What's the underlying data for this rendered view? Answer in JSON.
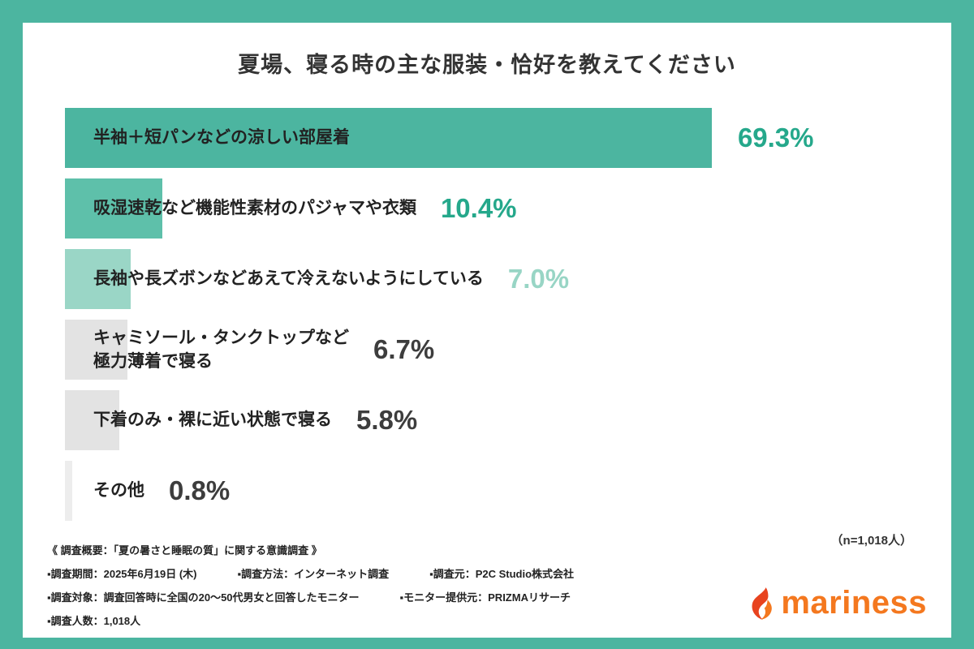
{
  "colors": {
    "accent_teal": "#4cb5a0",
    "logo_orange": "#f4781f",
    "logo_red": "#e8431f"
  },
  "chart_data": {
    "type": "bar",
    "title": "夏場、寝る時の主な服装・恰好を教えてください",
    "categories": [
      "半袖＋短パンなどの涼しい部屋着",
      "吸湿速乾など機能性素材のパジャマや衣類",
      "長袖や長ズボンなどあえて冷えないようにしている",
      "キャミソール・タンクトップなど\n極力薄着で寝る",
      "下着のみ・裸に近い状態で寝る",
      "その他"
    ],
    "values": [
      69.3,
      10.4,
      7.0,
      6.7,
      5.8,
      0.8
    ],
    "value_labels": [
      "69.3%",
      "10.4%",
      "7.0%",
      "6.7%",
      "5.8%",
      "0.8%"
    ],
    "bar_colors": [
      "#4cb5a0",
      "#5ec0aa",
      "#9ad6c6",
      "#e3e3e3",
      "#e3e3e3",
      "#ededed"
    ],
    "value_label_colors": [
      "#25a88b",
      "#25a88b",
      "#98d5c5",
      "#3d3d3d",
      "#3d3d3d",
      "#3d3d3d"
    ],
    "xlim": [
      0,
      100
    ],
    "grid": false,
    "legend": false,
    "orientation": "horizontal",
    "sample_note": "（n=1,018人）"
  },
  "footer": {
    "heading": "《 調査概要：「夏の暑さと睡眠の質」に関する意識調査 》",
    "rows": [
      [
        "▪調査期間：2025年6月19日 (木)",
        "▪調査方法：インターネット調査",
        "▪調査元：P2C Studio株式会社"
      ],
      [
        "▪調査対象：調査回答時に全国の20〜50代男女と回答したモニター",
        "▪モニター提供元：PRIZMAリサーチ"
      ],
      [
        "▪調査人数：1,018人"
      ]
    ]
  },
  "logo": {
    "text": "mariness"
  }
}
